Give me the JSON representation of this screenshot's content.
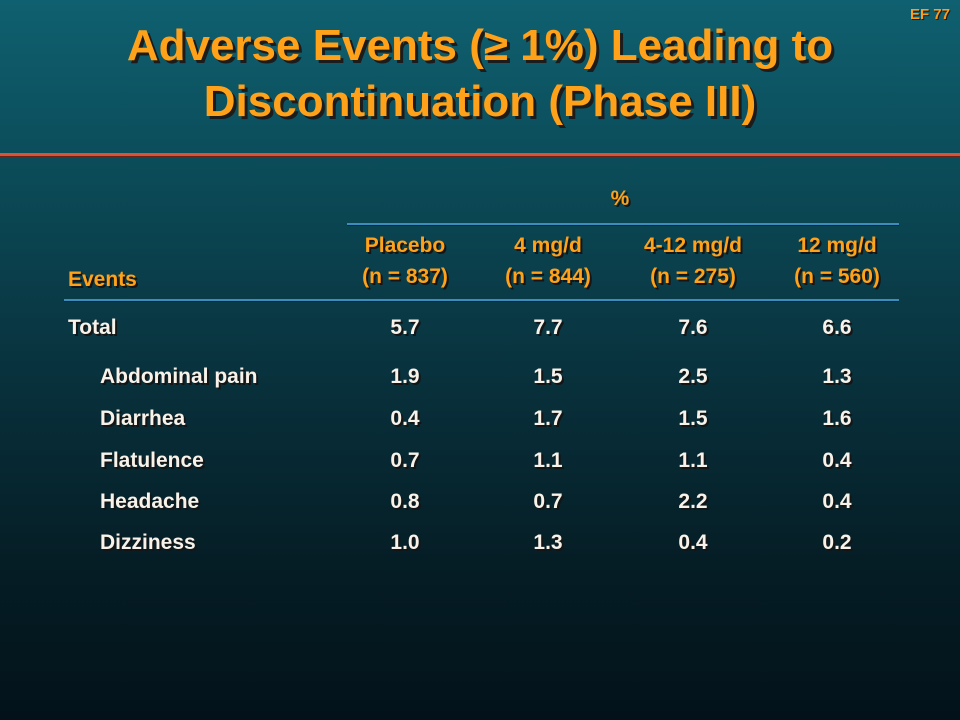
{
  "slide_id": "EF 77",
  "title_line1": "Adverse Events (≥ 1%) Leading to",
  "title_line2": "Discontinuation (Phase III)",
  "table": {
    "percent_label": "%",
    "events_header": "Events",
    "columns": [
      {
        "name": "Placebo",
        "n": "(n = 837)"
      },
      {
        "name": "4 mg/d",
        "n": "(n = 844)"
      },
      {
        "name": "4-12 mg/d",
        "n": "(n = 275)"
      },
      {
        "name": "12 mg/d",
        "n": "(n = 560)"
      }
    ],
    "total_row": {
      "label": "Total",
      "values": [
        "5.7",
        "7.7",
        "7.6",
        "6.6"
      ]
    },
    "rows": [
      {
        "label": "Abdominal pain",
        "values": [
          "1.9",
          "1.5",
          "2.5",
          "1.3"
        ]
      },
      {
        "label": "Diarrhea",
        "values": [
          "0.4",
          "1.7",
          "1.5",
          "1.6"
        ]
      },
      {
        "label": "Flatulence",
        "values": [
          "0.7",
          "1.1",
          "1.1",
          "0.4"
        ]
      },
      {
        "label": "Headache",
        "values": [
          "0.8",
          "0.7",
          "2.2",
          "0.4"
        ]
      },
      {
        "label": "Dizziness",
        "values": [
          "1.0",
          "1.3",
          "0.4",
          "0.2"
        ]
      }
    ]
  }
}
